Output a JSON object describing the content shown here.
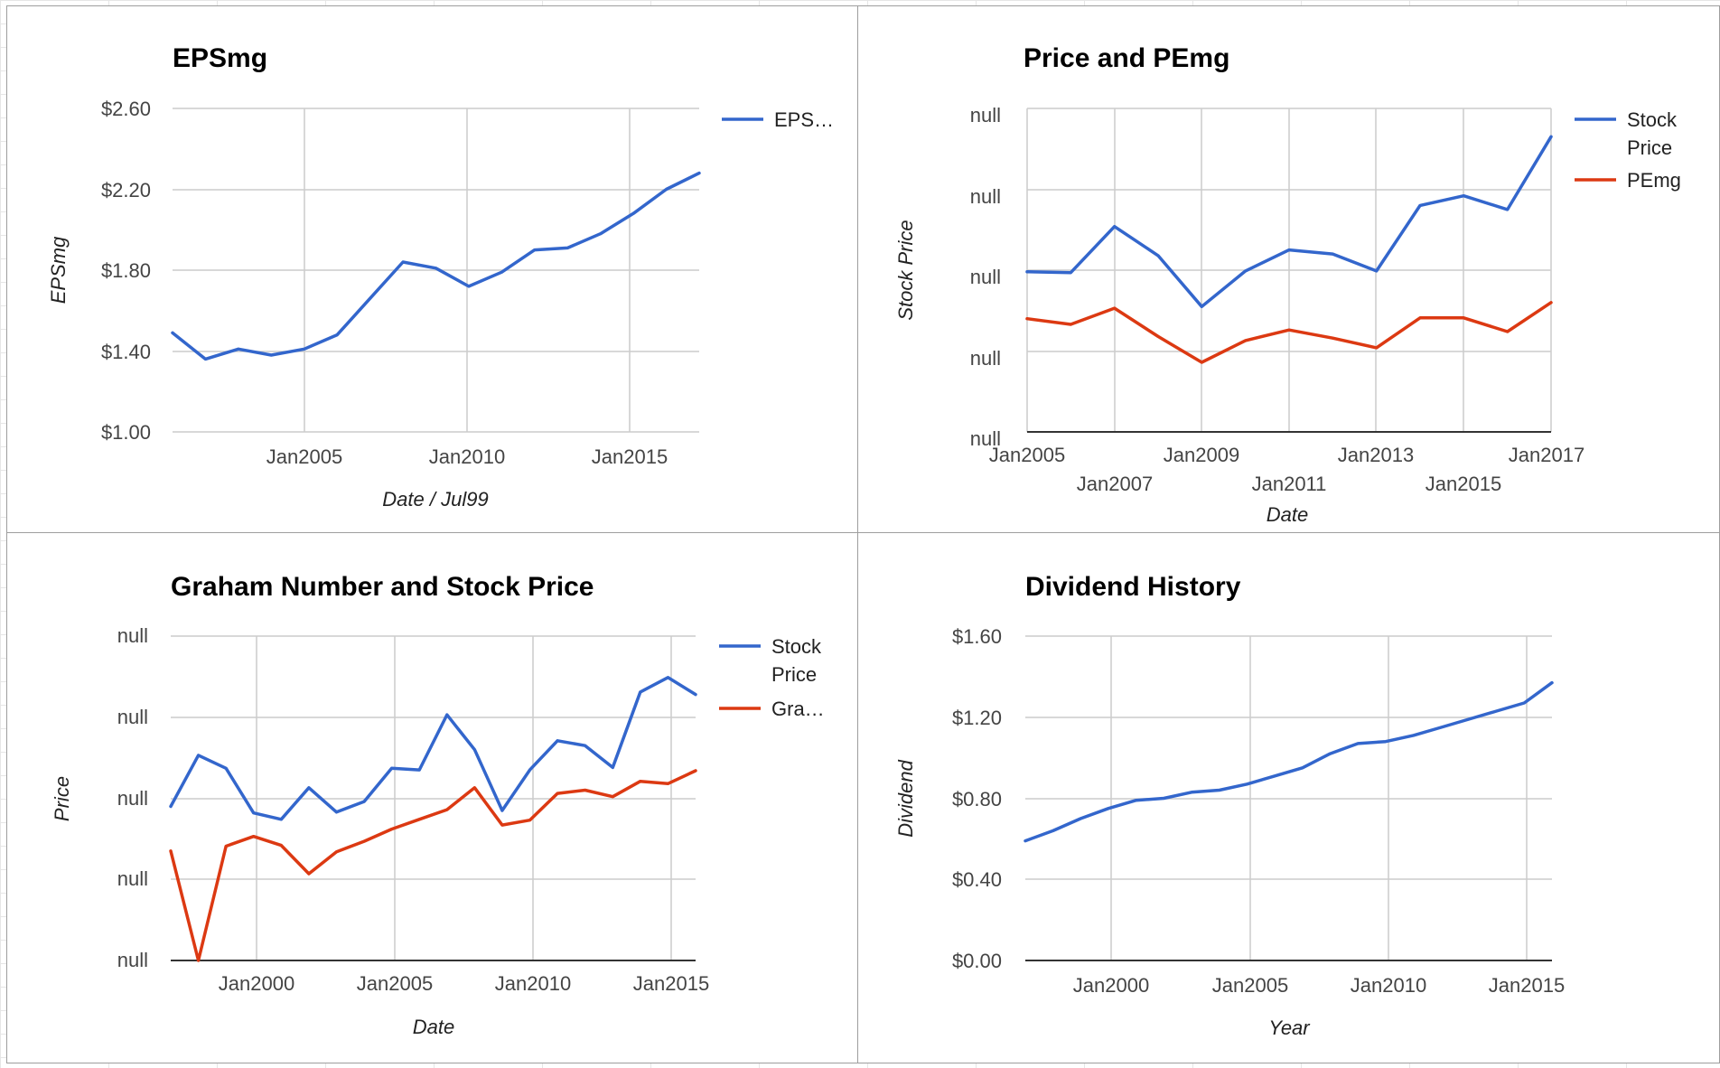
{
  "chart_data": [
    {
      "type": "line",
      "title": "EPSmg",
      "xlabel": "Date / Jul99",
      "ylabel": "EPSmg",
      "ylim": [
        1.0,
        2.6
      ],
      "y_ticks": [
        "$2.60",
        "$2.20",
        "$1.80",
        "$1.40",
        "$1.00"
      ],
      "x_ticks": [
        "Jan2005",
        "Jan2010",
        "Jan2015"
      ],
      "legend_position": "right",
      "grid": true,
      "x": [
        "Jan2001",
        "Jan2002",
        "Jan2003",
        "Jan2004",
        "Jan2005",
        "Jan2006",
        "Jan2007",
        "Jan2008",
        "Jan2009",
        "Jan2010",
        "Jan2011",
        "Jan2012",
        "Jan2013",
        "Jan2014",
        "Jan2015",
        "Jan2016",
        "Jan2017"
      ],
      "series": [
        {
          "name": "EPS…",
          "color": "#3366cc",
          "values": [
            1.49,
            1.36,
            1.41,
            1.38,
            1.41,
            1.48,
            1.66,
            1.84,
            1.81,
            1.72,
            1.79,
            1.9,
            1.91,
            1.98,
            2.08,
            2.2,
            2.28
          ]
        }
      ]
    },
    {
      "type": "line",
      "title": "Price and PEmg",
      "xlabel": "Date",
      "ylabel": "Stock Price",
      "ylim": [
        0,
        4
      ],
      "y_ticks": [
        "null",
        "null",
        "null",
        "null",
        "null"
      ],
      "x_ticks_row1": [
        "Jan2005",
        "Jan2009",
        "Jan2013",
        "Jan2017"
      ],
      "x_ticks_row2": [
        "Jan2007",
        "Jan2011",
        "Jan2015"
      ],
      "legend_position": "right",
      "grid": true,
      "x": [
        "Jan2005",
        "Jan2006",
        "Jan2007",
        "Jan2008",
        "Jan2009",
        "Jan2010",
        "Jan2011",
        "Jan2012",
        "Jan2013",
        "Jan2014",
        "Jan2015",
        "Jan2016",
        "Jan2017"
      ],
      "series": [
        {
          "name": "Stock Price",
          "legend_lines": [
            "Stock",
            "Price"
          ],
          "color": "#3366cc",
          "values": [
            1.98,
            1.97,
            2.54,
            2.18,
            1.55,
            1.99,
            2.25,
            2.2,
            1.99,
            2.8,
            2.92,
            2.75,
            3.65
          ]
        },
        {
          "name": "PEmg",
          "legend_lines": [
            "PEmg"
          ],
          "color": "#dc3912",
          "values": [
            1.4,
            1.33,
            1.53,
            1.18,
            0.86,
            1.13,
            1.26,
            1.16,
            1.04,
            1.41,
            1.41,
            1.24,
            1.6
          ]
        }
      ]
    },
    {
      "type": "line",
      "title": "Graham Number and Stock Price",
      "xlabel": "Date",
      "ylabel": "Price",
      "ylim": [
        0,
        4
      ],
      "y_ticks": [
        "null",
        "null",
        "null",
        "null",
        "null"
      ],
      "x_ticks": [
        "Jan2000",
        "Jan2005",
        "Jan2010",
        "Jan2015"
      ],
      "legend_position": "right",
      "grid": true,
      "x": [
        "Jan1997",
        "Jan1998",
        "Jan1999",
        "Jan2000",
        "Jan2001",
        "Jan2002",
        "Jan2003",
        "Jan2004",
        "Jan2005",
        "Jan2006",
        "Jan2007",
        "Jan2008",
        "Jan2009",
        "Jan2010",
        "Jan2011",
        "Jan2012",
        "Jan2013",
        "Jan2014",
        "Jan2015",
        "Jan2016"
      ],
      "series": [
        {
          "name": "Stock Price",
          "legend_lines": [
            "Stock",
            "Price"
          ],
          "color": "#3366cc",
          "values": [
            1.9,
            2.53,
            2.37,
            1.82,
            1.74,
            2.13,
            1.83,
            1.96,
            2.37,
            2.35,
            3.03,
            2.6,
            1.85,
            2.35,
            2.71,
            2.65,
            2.38,
            3.31,
            3.49,
            3.28
          ]
        },
        {
          "name": "Gra…",
          "legend_lines": [
            "Gra…"
          ],
          "color": "#dc3912",
          "values": [
            1.35,
            0.0,
            1.41,
            1.53,
            1.42,
            1.07,
            1.34,
            1.47,
            1.62,
            1.74,
            1.86,
            2.13,
            1.67,
            1.73,
            2.06,
            2.1,
            2.02,
            2.21,
            2.18,
            2.34
          ]
        }
      ]
    },
    {
      "type": "line",
      "title": "Dividend History",
      "xlabel": "Year",
      "ylabel": "Dividend",
      "ylim": [
        0,
        1.6
      ],
      "y_ticks": [
        "$1.60",
        "$1.20",
        "$0.80",
        "$0.40",
        "$0.00"
      ],
      "x_ticks": [
        "Jan2000",
        "Jan2005",
        "Jan2010",
        "Jan2015"
      ],
      "grid": true,
      "x": [
        "Jan1997",
        "Jan1998",
        "Jan1999",
        "Jan2000",
        "Jan2001",
        "Jan2002",
        "Jan2003",
        "Jan2004",
        "Jan2005",
        "Jan2006",
        "Jan2007",
        "Jan2008",
        "Jan2009",
        "Jan2010",
        "Jan2011",
        "Jan2012",
        "Jan2013",
        "Jan2014",
        "Jan2015",
        "Jan2016"
      ],
      "series": [
        {
          "name": "",
          "color": "#3366cc",
          "values": [
            0.59,
            0.64,
            0.7,
            0.75,
            0.79,
            0.8,
            0.83,
            0.84,
            0.87,
            0.91,
            0.95,
            1.02,
            1.07,
            1.08,
            1.11,
            1.15,
            1.19,
            1.23,
            1.27,
            1.37
          ]
        }
      ]
    }
  ]
}
